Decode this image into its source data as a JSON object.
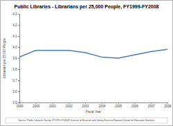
{
  "chart_data": {
    "type": "line",
    "title": "Public Libraries - Librarians per 25,000 People, FY1999-FY2008",
    "x_label": "Fiscal Year",
    "y_label": "Librarians per 25,000 People",
    "source": "Source: Public Libraries Survey, FY1999-FY2008, Institute of Museum and Library Services/National Center for Education Statistics",
    "categories": [
      "1999",
      "2000",
      "2001",
      "2002",
      "2003",
      "2004",
      "2005",
      "2006",
      "2007",
      "2008"
    ],
    "values": [
      3.91,
      3.97,
      3.97,
      3.97,
      3.95,
      3.91,
      3.9,
      3.93,
      3.96,
      3.98
    ],
    "color": "#4a7ebb",
    "ylim": [
      3.5,
      4.3
    ],
    "yticks": [
      3.5,
      3.6,
      3.7,
      3.8,
      3.9,
      {
        "value": 4,
        "label": "4.0"
      },
      4.1,
      4.2,
      4.3
    ],
    "grid": false
  }
}
